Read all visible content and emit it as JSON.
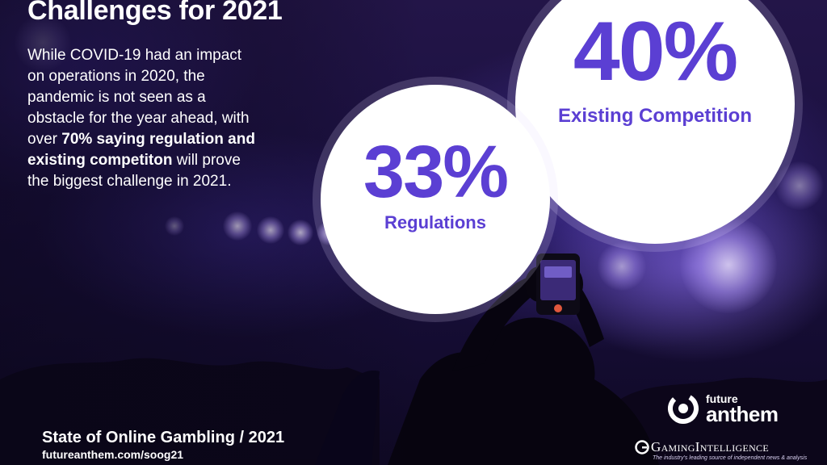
{
  "slide": {
    "title": "Challenges for 2021",
    "body": {
      "line1": "While COVID-19 had an impact",
      "line2": "on operations in 2020, the",
      "line3": "pandemic is not seen as a",
      "line4": "obstacle for the year ahead, with",
      "line5_plain": "over ",
      "line5_bold": "70% saying regulation and",
      "line6_bold": "existing competiton",
      "line6_plain": " will prove",
      "line7": "the biggest challenge in 2021."
    },
    "stats": [
      {
        "value": "40%",
        "label": "Existing Competition"
      },
      {
        "value": "33%",
        "label": "Regulations"
      }
    ],
    "accent_color": "#5b3fd3",
    "background_icon": "concert-crowd-phone-photo"
  },
  "footer": {
    "title": "State of Online Gambling / 2021",
    "url": "futureanthem.com/soog21"
  },
  "logos": {
    "future_anthem": {
      "small": "future",
      "big": "anthem"
    },
    "gaming_intelligence": {
      "name": "GamingIntelligence",
      "tagline": "The industry's leading source of independent news & analysis"
    }
  }
}
